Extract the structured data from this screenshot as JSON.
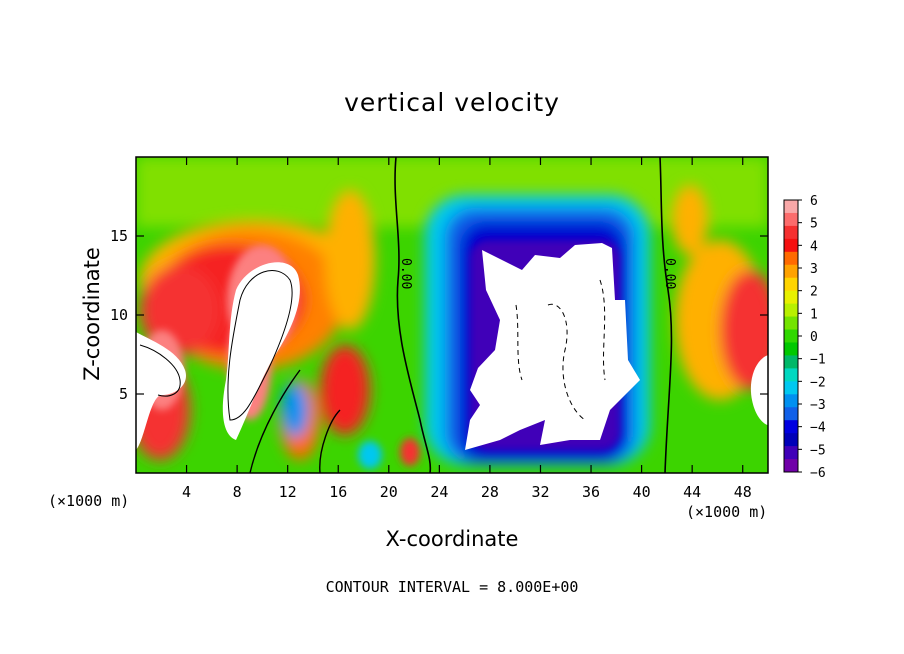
{
  "chart_data": {
    "type": "heatmap",
    "title": "vertical velocity",
    "xlabel": "X-coordinate",
    "ylabel": "Z-coordinate",
    "xunit": "(×1000 m)",
    "xticks": [
      4,
      8,
      12,
      16,
      20,
      24,
      28,
      32,
      36,
      40,
      44,
      48
    ],
    "yticks": [
      5,
      10,
      15
    ],
    "xlim": [
      0,
      50
    ],
    "ylim": [
      0,
      20
    ],
    "footnote": "CONTOUR INTERVAL = 8.000E+00",
    "contour_label": "0.00",
    "colorbar": {
      "ticks": [
        6,
        5,
        4,
        3,
        2,
        1,
        0,
        -1,
        -2,
        -3,
        -4,
        -5,
        -6
      ],
      "range": [
        -6,
        6
      ],
      "colors": [
        "#f9a8a8",
        "#fc6c6c",
        "#f53030",
        "#f51010",
        "#ff6a00",
        "#ffa200",
        "#ffd400",
        "#e8f000",
        "#b8f000",
        "#74e400",
        "#30d800",
        "#00c800",
        "#00b868",
        "#00d8c0",
        "#00c8f0",
        "#0090f0",
        "#1060e8",
        "#0000e0",
        "#0000b8",
        "#4000b8",
        "#7000a8"
      ]
    },
    "features": [
      {
        "kind": "updraft",
        "region": "x 6–14, z 1–14",
        "value": "> 6"
      },
      {
        "kind": "updraft",
        "region": "x 0–2, z 1–8",
        "value": "> 6"
      },
      {
        "kind": "downdraft",
        "region": "x 25–39, z 1–14",
        "value": "< -6"
      },
      {
        "kind": "updraft",
        "region": "x 48–50, z 3–7",
        "value": "> 6"
      }
    ]
  }
}
